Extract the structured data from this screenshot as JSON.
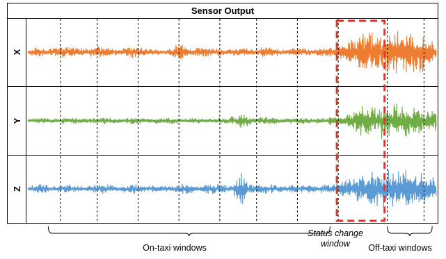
{
  "title": "Sensor Output",
  "annotations": {
    "on_taxi": "On-taxi windows",
    "status_change_line1": "Status change",
    "status_change_line2": "window",
    "off_taxi": "Off-taxi windows"
  },
  "colors": {
    "x": "#ed7d31",
    "y": "#70ad47",
    "z": "#5b9bd5",
    "highlight": "#e8312f"
  },
  "chart_data": {
    "type": "line",
    "title": "Sensor Output",
    "grid": false,
    "series": [
      {
        "name": "X",
        "panel_label": "X",
        "color": "#ed7d31",
        "amplitude_profile": [
          [
            0.0,
            0.05
          ],
          [
            0.02,
            0.25
          ],
          [
            0.04,
            0.1
          ],
          [
            0.07,
            0.15
          ],
          [
            0.1,
            0.22
          ],
          [
            0.14,
            0.12
          ],
          [
            0.18,
            0.25
          ],
          [
            0.22,
            0.1
          ],
          [
            0.26,
            0.22
          ],
          [
            0.3,
            0.12
          ],
          [
            0.34,
            0.08
          ],
          [
            0.37,
            0.3
          ],
          [
            0.4,
            0.12
          ],
          [
            0.44,
            0.2
          ],
          [
            0.48,
            0.1
          ],
          [
            0.52,
            0.18
          ],
          [
            0.55,
            0.1
          ],
          [
            0.58,
            0.2
          ],
          [
            0.62,
            0.1
          ],
          [
            0.66,
            0.16
          ],
          [
            0.7,
            0.1
          ],
          [
            0.74,
            0.18
          ],
          [
            0.77,
            0.3
          ],
          [
            0.785,
            0.45
          ],
          [
            0.8,
            0.55
          ],
          [
            0.84,
            0.7
          ],
          [
            0.87,
            0.55
          ],
          [
            0.88,
            0.85
          ],
          [
            0.92,
            0.8
          ],
          [
            0.96,
            0.75
          ],
          [
            1.0,
            0.4
          ]
        ]
      },
      {
        "name": "Y",
        "panel_label": "Y",
        "color": "#70ad47",
        "amplitude_profile": [
          [
            0.0,
            0.05
          ],
          [
            0.03,
            0.1
          ],
          [
            0.07,
            0.08
          ],
          [
            0.1,
            0.12
          ],
          [
            0.15,
            0.08
          ],
          [
            0.19,
            0.14
          ],
          [
            0.23,
            0.08
          ],
          [
            0.26,
            0.12
          ],
          [
            0.3,
            0.08
          ],
          [
            0.34,
            0.14
          ],
          [
            0.38,
            0.06
          ],
          [
            0.41,
            0.12
          ],
          [
            0.44,
            0.06
          ],
          [
            0.51,
            0.16
          ],
          [
            0.52,
            0.3
          ],
          [
            0.55,
            0.1
          ],
          [
            0.58,
            0.14
          ],
          [
            0.62,
            0.08
          ],
          [
            0.66,
            0.12
          ],
          [
            0.7,
            0.08
          ],
          [
            0.74,
            0.14
          ],
          [
            0.77,
            0.2
          ],
          [
            0.8,
            0.35
          ],
          [
            0.82,
            0.55
          ],
          [
            0.85,
            0.45
          ],
          [
            0.87,
            0.65
          ],
          [
            0.9,
            0.6
          ],
          [
            0.94,
            0.55
          ],
          [
            1.0,
            0.35
          ]
        ]
      },
      {
        "name": "Z",
        "panel_label": "Z",
        "color": "#5b9bd5",
        "amplitude_profile": [
          [
            0.0,
            0.08
          ],
          [
            0.03,
            0.18
          ],
          [
            0.06,
            0.08
          ],
          [
            0.1,
            0.16
          ],
          [
            0.14,
            0.08
          ],
          [
            0.18,
            0.2
          ],
          [
            0.22,
            0.1
          ],
          [
            0.26,
            0.18
          ],
          [
            0.29,
            0.1
          ],
          [
            0.32,
            0.14
          ],
          [
            0.35,
            0.1
          ],
          [
            0.38,
            0.18
          ],
          [
            0.42,
            0.12
          ],
          [
            0.46,
            0.2
          ],
          [
            0.5,
            0.12
          ],
          [
            0.52,
            0.7
          ],
          [
            0.54,
            0.15
          ],
          [
            0.58,
            0.18
          ],
          [
            0.62,
            0.12
          ],
          [
            0.66,
            0.16
          ],
          [
            0.7,
            0.12
          ],
          [
            0.74,
            0.18
          ],
          [
            0.77,
            0.3
          ],
          [
            0.8,
            0.5
          ],
          [
            0.83,
            0.55
          ],
          [
            0.87,
            0.65
          ],
          [
            0.9,
            0.7
          ],
          [
            0.94,
            0.6
          ],
          [
            1.0,
            0.45
          ]
        ]
      }
    ],
    "window_boundaries": [
      0.08,
      0.17,
      0.27,
      0.37,
      0.47,
      0.56,
      0.66,
      0.76,
      0.88,
      0.97
    ],
    "status_change_window": [
      0.76,
      0.87
    ],
    "braces": [
      {
        "label": "On-taxi windows",
        "range": [
          0.05,
          0.74
        ]
      },
      {
        "label": "Off-taxi windows",
        "range": [
          0.88,
          0.99
        ]
      }
    ]
  }
}
